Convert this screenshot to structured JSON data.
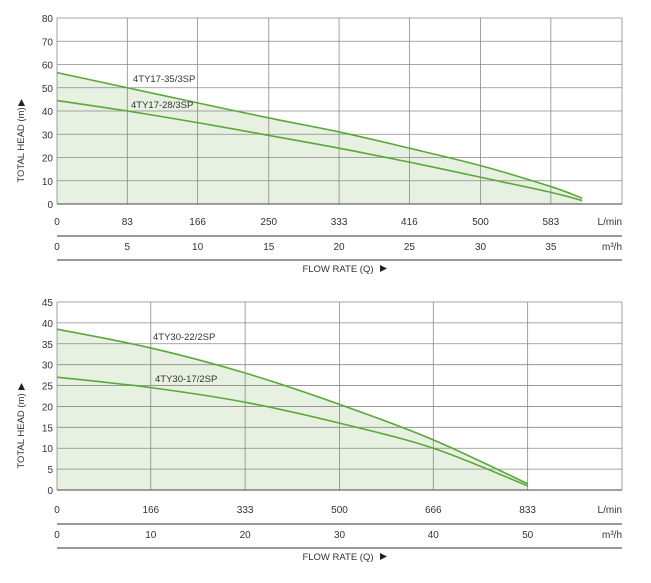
{
  "colors": {
    "curve": "#5aa83a",
    "fill": "#e6f1e1",
    "grid": "#8a8a8a",
    "text": "#333333"
  },
  "chart_data": [
    {
      "type": "line",
      "ylabel": "TOTAL HEAD (m)",
      "xlabel": "FLOW RATE (Q)",
      "ylim": [
        0,
        80
      ],
      "yticks": [
        0,
        10,
        20,
        30,
        40,
        50,
        60,
        70,
        80
      ],
      "xlim_lmin": [
        0,
        667
      ],
      "x_ticks_lmin": [
        0,
        83,
        166,
        250,
        333,
        416,
        500,
        583
      ],
      "x_unit_lmin": "L/min",
      "x_ticks_m3h": [
        0,
        5,
        10,
        15,
        20,
        25,
        30,
        35
      ],
      "x_unit_m3h": "m³/h",
      "grid": true,
      "series": [
        {
          "name": "4TY17-35/3SP",
          "x": [
            0,
            83,
            166,
            250,
            333,
            416,
            500,
            583,
            620
          ],
          "y": [
            56.5,
            50,
            43.5,
            37,
            31,
            24,
            16.5,
            7.5,
            2.5
          ]
        },
        {
          "name": "4TY17-28/3SP",
          "x": [
            0,
            83,
            166,
            250,
            333,
            416,
            500,
            583,
            620
          ],
          "y": [
            44.5,
            40,
            35,
            29.5,
            24,
            18,
            11.5,
            5,
            1.5
          ]
        }
      ]
    },
    {
      "type": "line",
      "ylabel": "TOTAL HEAD (m)",
      "xlabel": "FLOW RATE (Q)",
      "ylim": [
        0,
        45
      ],
      "yticks": [
        0,
        5,
        10,
        15,
        20,
        25,
        30,
        35,
        40,
        45
      ],
      "xlim_lmin": [
        0,
        1000
      ],
      "x_ticks_lmin": [
        0,
        166,
        333,
        500,
        666,
        833
      ],
      "x_unit_lmin": "L/min",
      "x_ticks_m3h": [
        0,
        10,
        20,
        30,
        40,
        50
      ],
      "x_unit_m3h": "m³/h",
      "grid": true,
      "series": [
        {
          "name": "4TY30-22/2SP",
          "x": [
            0,
            166,
            333,
            500,
            666,
            833
          ],
          "y": [
            38.5,
            34,
            28,
            20.5,
            12,
            1.5
          ]
        },
        {
          "name": "4TY30-17/2SP",
          "x": [
            0,
            166,
            333,
            500,
            666,
            833
          ],
          "y": [
            27,
            24.5,
            21,
            16,
            10,
            1
          ]
        }
      ]
    }
  ]
}
